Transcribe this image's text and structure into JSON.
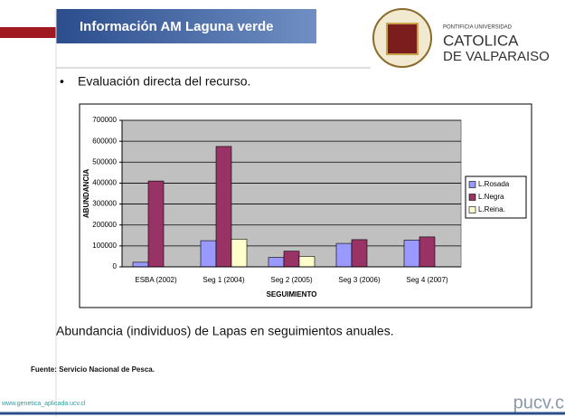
{
  "slide": {
    "title": "Información AM Laguna verde",
    "logo_line1": "PONTIFICIA UNIVERSIDAD",
    "logo_line2": "CATOLICA",
    "logo_line3": "DE VALPARAISO",
    "bullet": "Evaluación directa del recurso.",
    "caption": "Abundancia (individuos) de Lapas en seguimientos anuales.",
    "source": "Fuente: Servicio Nacional de Pesca.",
    "url": "www.genetica_aplicada.ucv.cl",
    "brand": "pucv.c"
  },
  "chart_data": {
    "type": "bar",
    "x_label": "SEGUIMIENTO",
    "y_label": "ABUNDANCIA",
    "categories": [
      "ESBA (2002)",
      "Seg 1 (2004)",
      "Seg 2 (2005)",
      "Seg 3 (2006)",
      "Seg 4 (2007)"
    ],
    "series": [
      {
        "name": "L.Rosada",
        "color": "#9999ff",
        "values": [
          22000,
          125000,
          45000,
          112000,
          128000
        ]
      },
      {
        "name": "L.Negra",
        "color": "#993366",
        "values": [
          410000,
          575000,
          75000,
          130000,
          143000
        ]
      },
      {
        "name": "L.Reina.",
        "color": "#ffffcc",
        "values": [
          0,
          132000,
          50000,
          0,
          0
        ]
      }
    ],
    "ylim": [
      0,
      700000
    ],
    "yticks": [
      0,
      100000,
      200000,
      300000,
      400000,
      500000,
      600000,
      700000
    ],
    "grid": true,
    "legend": "right",
    "plot_background": "#c0c0c0"
  }
}
